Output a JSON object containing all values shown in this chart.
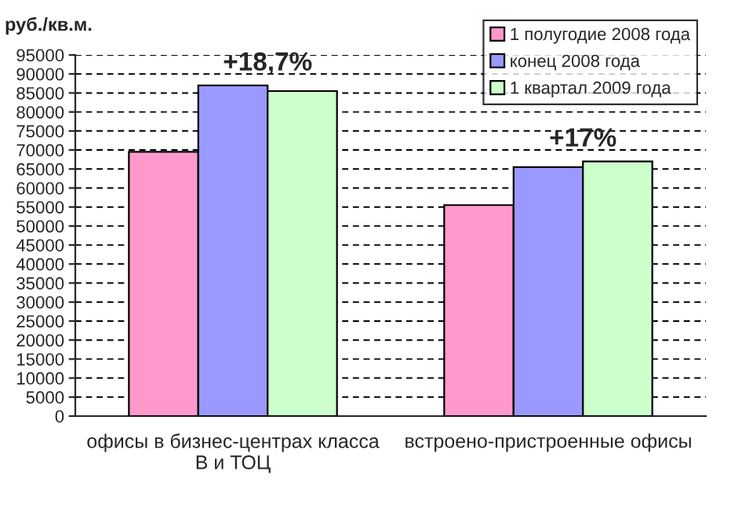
{
  "chart_data": {
    "type": "bar",
    "ylabel": "руб./кв.м.",
    "categories": [
      "офисы в бизнес-центрах класса\nВ и ТОЦ",
      "встроено-пристроенные офисы"
    ],
    "series": [
      {
        "name": "1 полугодие 2008 года",
        "color": "#ff99cc",
        "values": [
          69500,
          55500
        ]
      },
      {
        "name": "конец 2008 года",
        "color": "#9999ff",
        "values": [
          87000,
          65500
        ]
      },
      {
        "name": "1 квартал 2009 года",
        "color": "#ccffcc",
        "values": [
          85500,
          67000
        ]
      }
    ],
    "ylim": [
      0,
      95000
    ],
    "yticks": [
      0,
      5000,
      10000,
      15000,
      20000,
      25000,
      30000,
      35000,
      40000,
      45000,
      50000,
      55000,
      60000,
      65000,
      70000,
      75000,
      80000,
      85000,
      90000,
      95000
    ],
    "grid": "y",
    "legend": "top right",
    "annotations": [
      "+18,7%",
      "+17%"
    ]
  }
}
